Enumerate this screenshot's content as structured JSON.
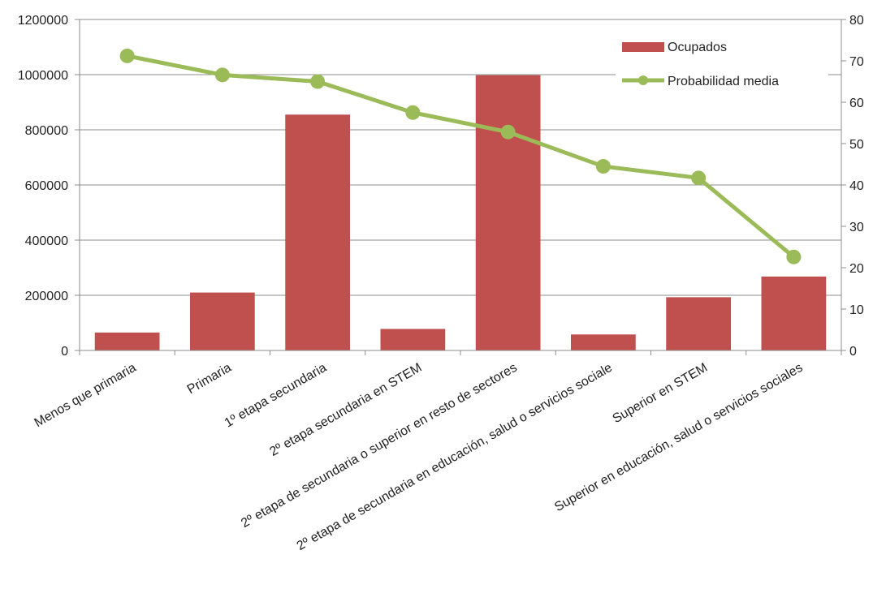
{
  "chart_data": {
    "type": "bar",
    "categories": [
      "Menos que primaria",
      "Primaria",
      "1º etapa secundaria",
      "2º etapa secundaria en STEM",
      "2º etapa de secundaria o superior en resto de sectores",
      "2º etapa de secundaria en educación, salud o servicios sociale",
      "Superior en STEM",
      "Superior en educación, salud o servicios sociales"
    ],
    "series": [
      {
        "name": "Ocupados",
        "type": "bar",
        "axis": "left",
        "color": "#c0504d",
        "values": [
          65000,
          210000,
          855000,
          78000,
          998000,
          58000,
          193000,
          268000
        ]
      },
      {
        "name": "Probabilidad media",
        "type": "line",
        "axis": "right",
        "color": "#9bbb59",
        "values": [
          71.2,
          66.6,
          65.0,
          57.5,
          52.8,
          44.5,
          41.7,
          22.6
        ]
      }
    ],
    "ylim": [
      0,
      1200000
    ],
    "y_ticks": [
      "0",
      "200000",
      "400000",
      "600000",
      "800000",
      "1000000",
      "1200000"
    ],
    "y2lim": [
      0,
      80
    ],
    "y2_ticks": [
      "0",
      "10",
      "20",
      "30",
      "40",
      "50",
      "60",
      "70",
      "80"
    ],
    "grid": true,
    "legend_position": "top-right"
  }
}
